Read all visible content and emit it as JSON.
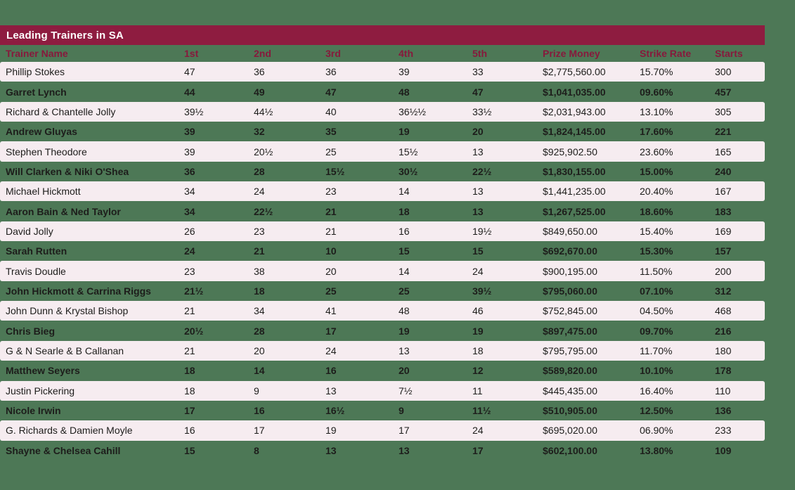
{
  "colors": {
    "background": "#4d7856",
    "title_bar": "#8e1c40",
    "header_text": "#87193c",
    "row_light": "#f6ecf0",
    "row_text": "#1d1d1b",
    "title_text": "#ffffff"
  },
  "chart_data": {
    "type": "table",
    "title": "Leading Trainers in SA",
    "columns": [
      "Trainer Name",
      "1st",
      "2nd",
      "3rd",
      "4th",
      "5th",
      "Prize Money",
      "Strike Rate",
      "Starts"
    ],
    "rows": [
      [
        "Phillip Stokes",
        "47",
        "36",
        "36",
        "39",
        "33",
        "$2,775,560.00",
        "15.70%",
        "300"
      ],
      [
        "Garret Lynch",
        "44",
        "49",
        "47",
        "48",
        "47",
        "$1,041,035.00",
        "09.60%",
        "457"
      ],
      [
        "Richard & Chantelle Jolly",
        "39½",
        "44½",
        "40",
        "36½½",
        "33½",
        "$2,031,943.00",
        "13.10%",
        "305"
      ],
      [
        "Andrew Gluyas",
        "39",
        "32",
        "35",
        "19",
        "20",
        "$1,824,145.00",
        "17.60%",
        "221"
      ],
      [
        "Stephen Theodore",
        "39",
        "20½",
        "25",
        "15½",
        "13",
        "$925,902.50",
        "23.60%",
        "165"
      ],
      [
        "Will Clarken & Niki O'Shea",
        "36",
        "28",
        "15½",
        "30½",
        "22½",
        "$1,830,155.00",
        "15.00%",
        "240"
      ],
      [
        "Michael Hickmott",
        "34",
        "24",
        "23",
        "14",
        "13",
        "$1,441,235.00",
        "20.40%",
        "167"
      ],
      [
        "Aaron Bain & Ned Taylor",
        "34",
        "22½",
        "21",
        "18",
        "13",
        "$1,267,525.00",
        "18.60%",
        "183"
      ],
      [
        "David Jolly",
        "26",
        "23",
        "21",
        "16",
        "19½",
        "$849,650.00",
        "15.40%",
        "169"
      ],
      [
        "Sarah Rutten",
        "24",
        "21",
        "10",
        "15",
        "15",
        "$692,670.00",
        "15.30%",
        "157"
      ],
      [
        "Travis Doudle",
        "23",
        "38",
        "20",
        "14",
        "24",
        "$900,195.00",
        "11.50%",
        "200"
      ],
      [
        "John Hickmott & Carrina Riggs",
        "21½",
        "18",
        "25",
        "25",
        "39½",
        "$795,060.00",
        "07.10%",
        "312"
      ],
      [
        "John Dunn & Krystal Bishop",
        "21",
        "34",
        "41",
        "48",
        "46",
        "$752,845.00",
        "04.50%",
        "468"
      ],
      [
        "Chris Bieg",
        "20½",
        "28",
        "17",
        "19",
        "19",
        "$897,475.00",
        "09.70%",
        "216"
      ],
      [
        "G & N Searle & B Callanan",
        "21",
        "20",
        "24",
        "13",
        "18",
        "$795,795.00",
        "11.70%",
        "180"
      ],
      [
        "Matthew Seyers",
        "18",
        "14",
        "16",
        "20",
        "12",
        "$589,820.00",
        "10.10%",
        "178"
      ],
      [
        "Justin Pickering",
        "18",
        "9",
        "13",
        "7½",
        "11",
        "$445,435.00",
        "16.40%",
        "110"
      ],
      [
        "Nicole Irwin",
        "17",
        "16",
        "16½",
        "9",
        "11½",
        "$510,905.00",
        "12.50%",
        "136"
      ],
      [
        "G. Richards & Damien Moyle",
        "16",
        "17",
        "19",
        "17",
        "24",
        "$695,020.00",
        "06.90%",
        "233"
      ],
      [
        "Shayne & Chelsea Cahill",
        "15",
        "8",
        "13",
        "13",
        "17",
        "$602,100.00",
        "13.80%",
        "109"
      ]
    ]
  }
}
